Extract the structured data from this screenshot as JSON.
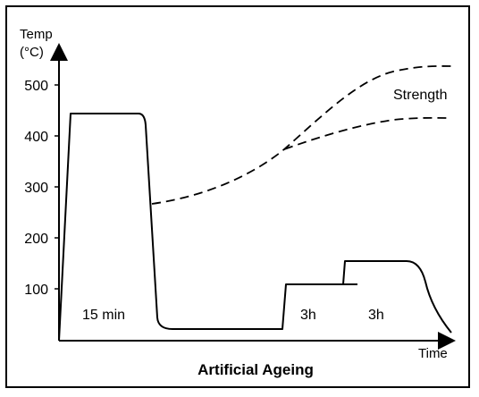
{
  "diagram": {
    "y_axis_title_line1": "Temp",
    "y_axis_title_line2": "(°C)",
    "x_axis_title": "Time",
    "caption": "Artificial Ageing",
    "curve_label": "Strength",
    "segment_labels": {
      "solution": "15 min",
      "ageing1": "3h",
      "ageing2": "3h"
    },
    "y_ticks": [
      "500",
      "400",
      "300",
      "200",
      "100"
    ]
  },
  "chart_data": {
    "type": "line",
    "ylabel": "Temp (°C)",
    "xlabel": "Time",
    "y_ticks": [
      100,
      200,
      300,
      400,
      500
    ],
    "ylim": [
      0,
      560
    ],
    "series": [
      {
        "name": "",
        "style": "solid",
        "description_values_temp_C": [
          0,
          445,
          445,
          15,
          15,
          105,
          105,
          155,
          155,
          10
        ]
      },
      {
        "name": "Strength",
        "style": "dashed",
        "description_values_temp_C": [
          265,
          370,
          535
        ]
      },
      {
        "name": "",
        "style": "dashed",
        "description_values_temp_C": [
          265,
          370,
          435
        ]
      }
    ]
  }
}
